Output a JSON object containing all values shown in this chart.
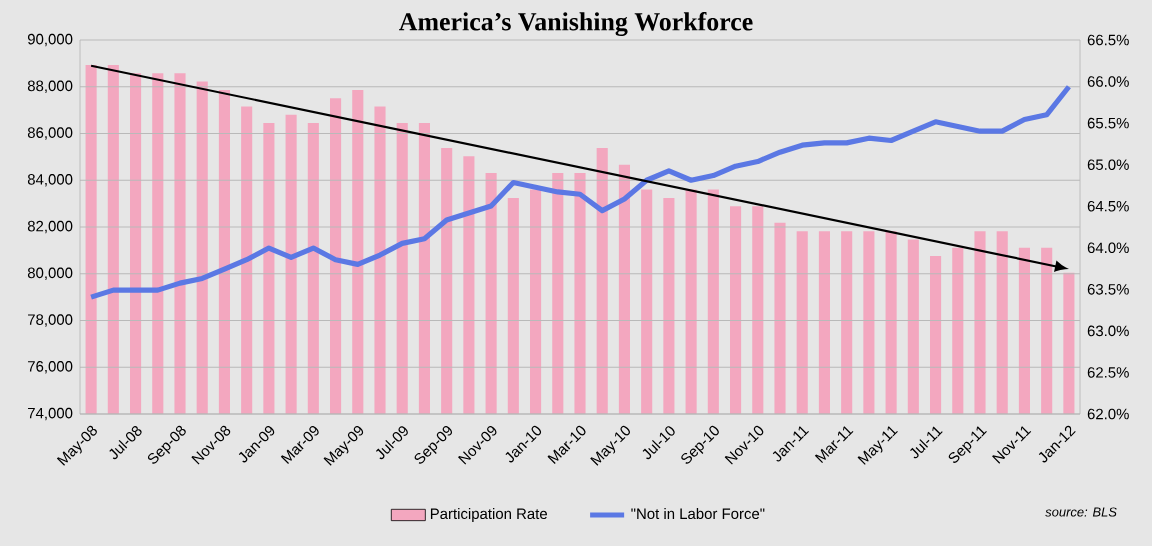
{
  "chart_data": {
    "type": "bar",
    "title": "America’s Vanishing Workforce",
    "categories": [
      "May-08",
      null,
      "Jul-08",
      null,
      "Sep-08",
      null,
      "Nov-08",
      null,
      "Jan-09",
      null,
      "Mar-09",
      null,
      "May-09",
      null,
      "Jul-09",
      null,
      "Sep-09",
      null,
      "Nov-09",
      null,
      "Jan-10",
      null,
      "Mar-10",
      null,
      "May-10",
      null,
      "Jul-10",
      null,
      "Sep-10",
      null,
      "Nov-10",
      null,
      "Jan-11",
      null,
      "Mar-11",
      null,
      "May-11",
      null,
      "Jul-11",
      null,
      "Sep-11",
      null,
      "Nov-11",
      null,
      "Jan-12"
    ],
    "series": [
      {
        "name": "Participation Rate",
        "axis": "y2",
        "color": "#f3a7bf",
        "values": [
          66.2,
          66.2,
          66.1,
          66.1,
          66.1,
          66.0,
          65.9,
          65.7,
          65.5,
          65.6,
          65.5,
          65.8,
          65.9,
          65.7,
          65.5,
          65.5,
          65.2,
          65.1,
          64.9,
          64.6,
          64.7,
          64.9,
          64.9,
          65.2,
          65.0,
          64.7,
          64.6,
          64.7,
          64.7,
          64.5,
          64.5,
          64.3,
          64.2,
          64.2,
          64.2,
          64.2,
          64.2,
          64.1,
          63.9,
          64.0,
          64.2,
          64.2,
          64.0,
          64.0,
          63.7
        ]
      },
      {
        "name": "\"Not in Labor Force\"",
        "type": "line",
        "color": "#5b78e4",
        "values": [
          79000,
          79300,
          79300,
          79300,
          79600,
          79800,
          80200,
          80600,
          81100,
          80700,
          81100,
          80600,
          80400,
          80800,
          81300,
          81500,
          82300,
          82600,
          82900,
          83900,
          83700,
          83500,
          83400,
          82700,
          83200,
          84000,
          84400,
          84000,
          84200,
          84600,
          84800,
          85200,
          85500,
          85600,
          85600,
          85800,
          85700,
          86100,
          86500,
          86300,
          86100,
          86100,
          86600,
          86800,
          88000
        ]
      },
      {
        "type": "line",
        "color": "#000000",
        "x": [
          "May-08",
          "Jan-12"
        ],
        "values": [
          88900,
          80200
        ]
      }
    ],
    "ylim": [
      74000,
      90000
    ],
    "yticks": [
      {
        "value": 74000,
        "label": "74,000"
      },
      {
        "value": 76000,
        "label": "76,000"
      },
      {
        "value": 78000,
        "label": "78,000"
      },
      {
        "value": 80000,
        "label": "80,000"
      },
      {
        "value": 82000,
        "label": "82,000"
      },
      {
        "value": 84000,
        "label": "84,000"
      },
      {
        "value": 86000,
        "label": "86,000"
      },
      {
        "value": 88000,
        "label": "88,000"
      },
      {
        "value": 90000,
        "label": "90,000"
      }
    ],
    "y2lim": [
      62.0,
      66.5
    ],
    "y2ticks": [
      {
        "value": 62.0,
        "label": "62.0%"
      },
      {
        "value": 62.5,
        "label": "62.5%"
      },
      {
        "value": 63.0,
        "label": "63.0%"
      },
      {
        "value": 63.5,
        "label": "63.5%"
      },
      {
        "value": 64.0,
        "label": "64.0%"
      },
      {
        "value": 64.5,
        "label": "64.5%"
      },
      {
        "value": 65.0,
        "label": "65.0%"
      },
      {
        "value": 65.5,
        "label": "65.5%"
      },
      {
        "value": 66.0,
        "label": "66.0%"
      },
      {
        "value": 66.5,
        "label": "66.5%"
      }
    ],
    "grid": "y",
    "legend": "bottom",
    "marker": "none",
    "line_style": "solid",
    "annotations": [
      "source: BLS"
    ]
  }
}
